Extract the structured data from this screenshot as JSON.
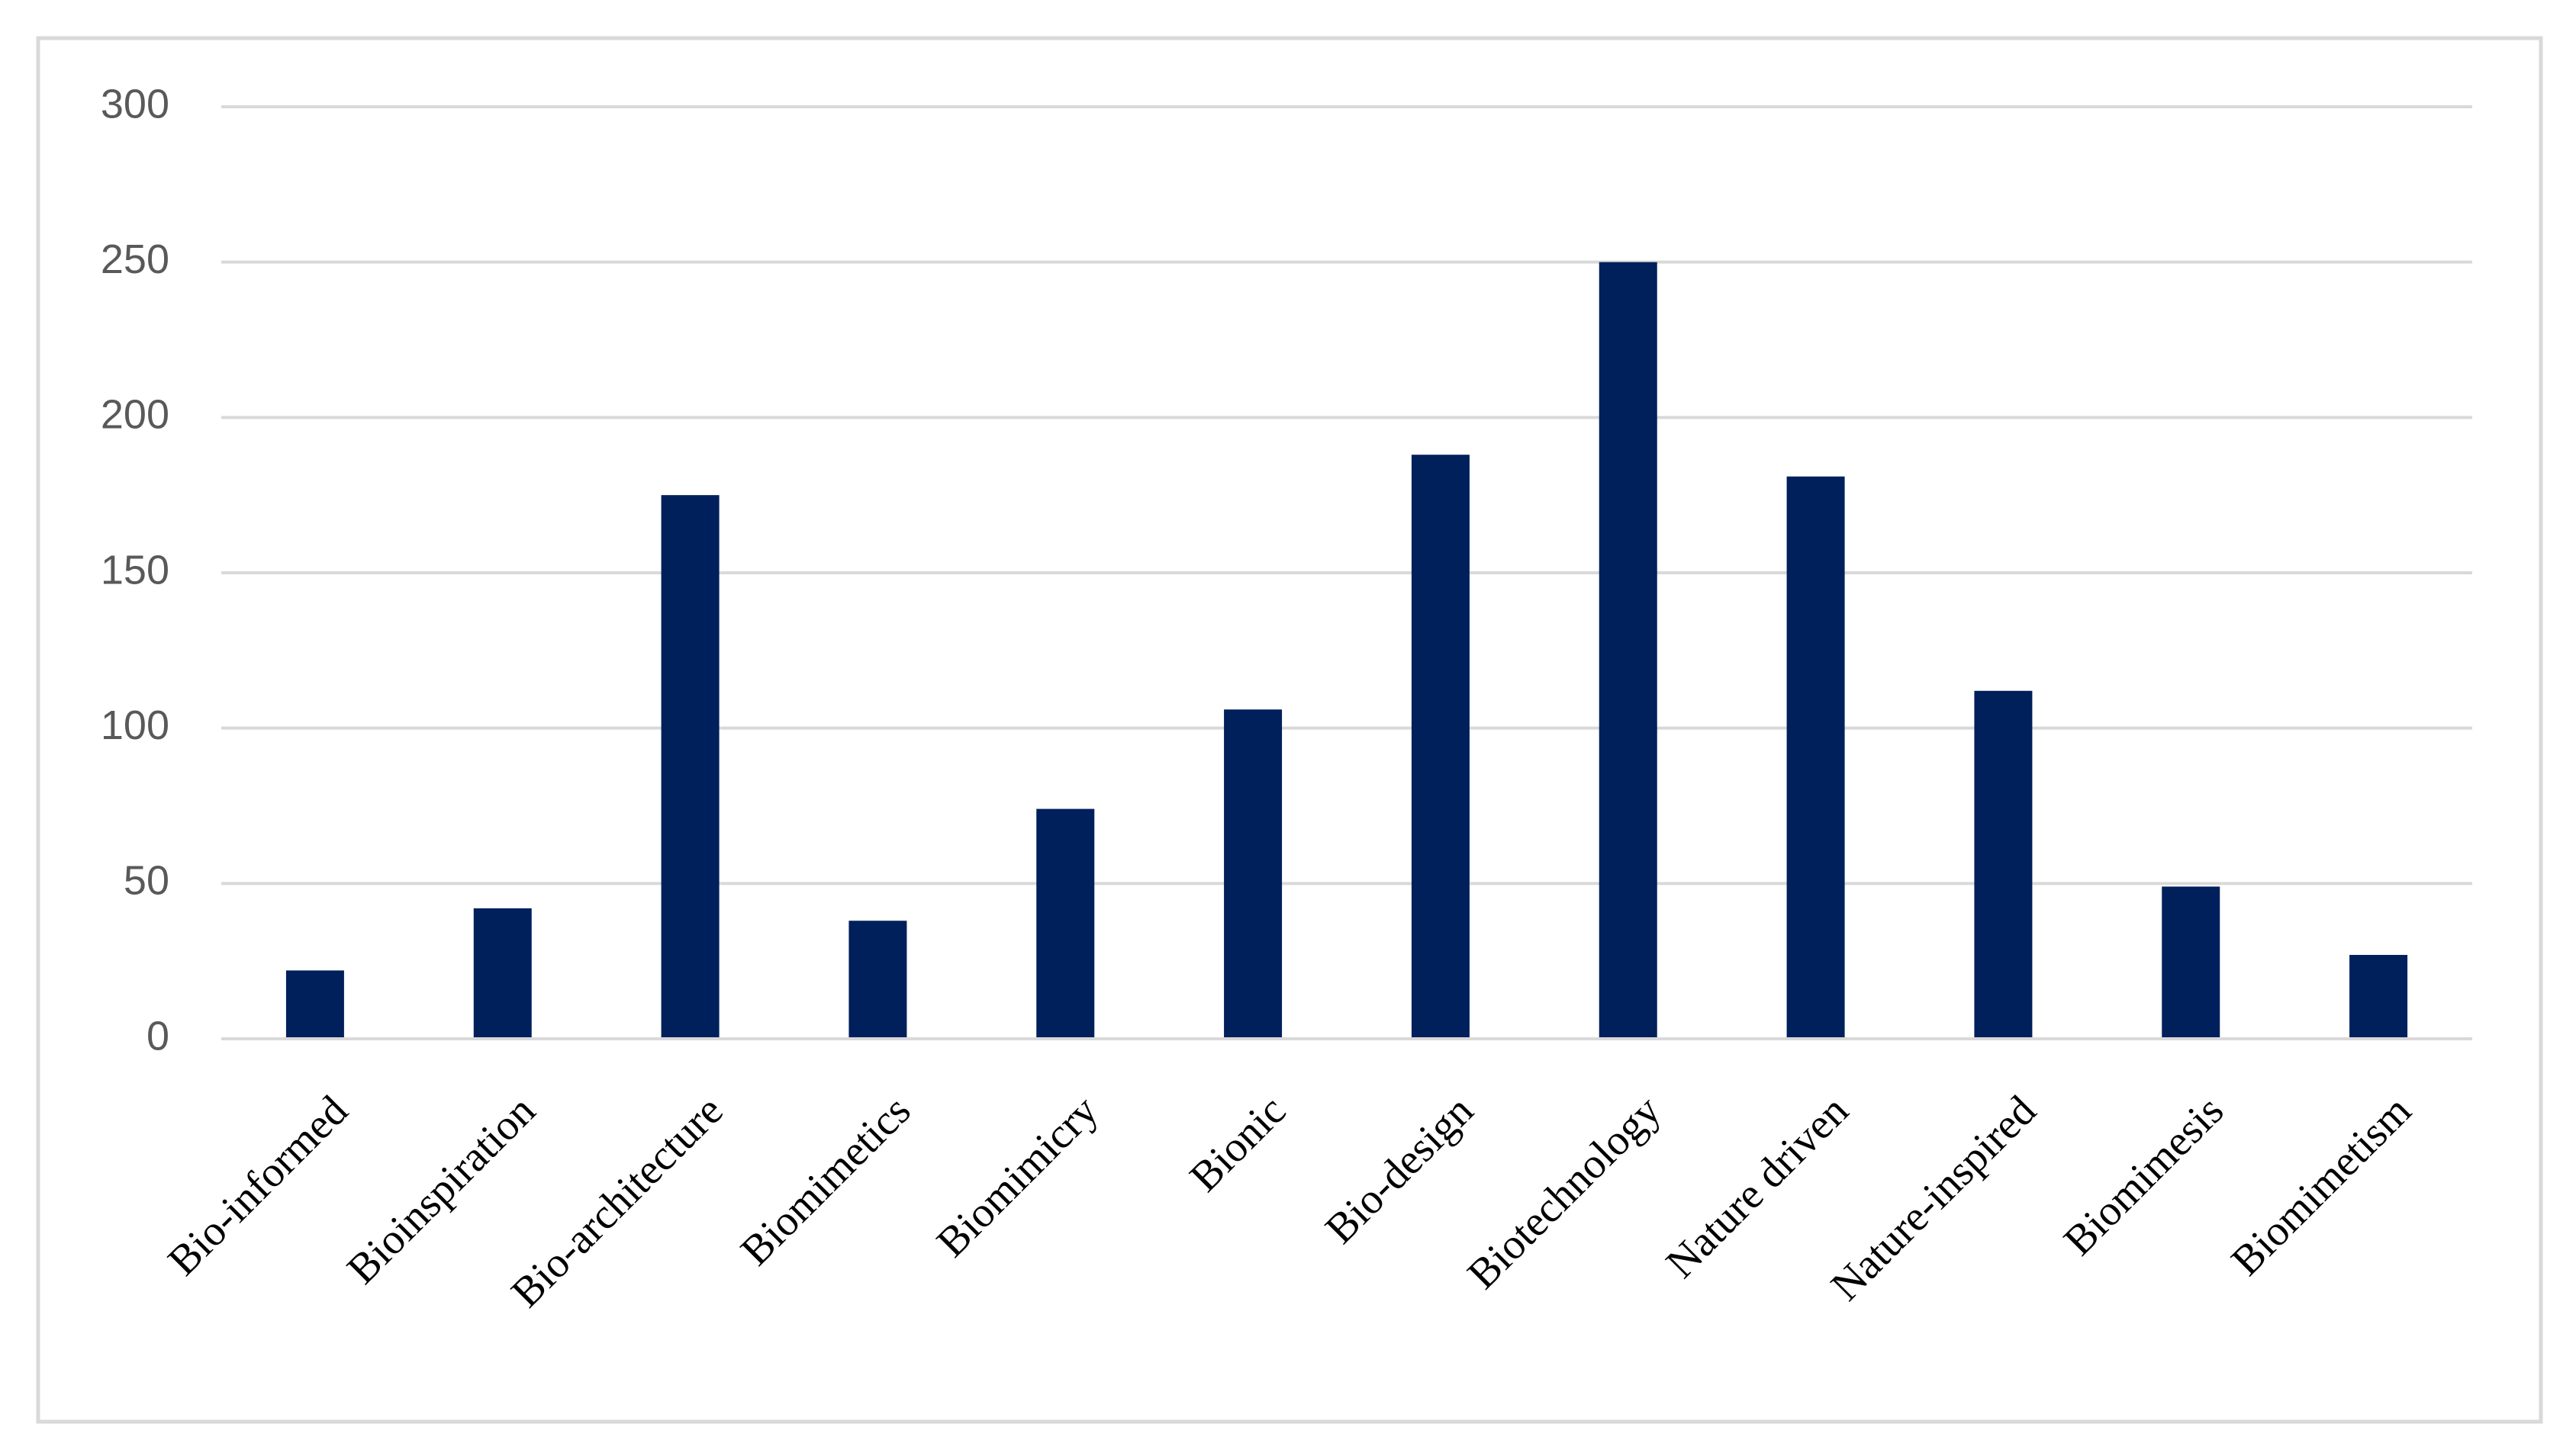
{
  "chart_data": {
    "type": "bar",
    "title": "",
    "xlabel": "",
    "ylabel": "",
    "categories": [
      "Bio-informed",
      "Bioinspiration",
      "Bio-architecture",
      "Biomimetics",
      "Biomimicry",
      "Bionic",
      "Bio-design",
      "Biotechnology",
      "Nature driven",
      "Nature-inspired",
      "Biomimesis",
      "Biomimetism"
    ],
    "values": [
      22,
      42,
      175,
      38,
      74,
      106,
      188,
      250,
      181,
      112,
      49,
      27
    ],
    "ylim": [
      0,
      300
    ],
    "yticks": [
      0,
      50,
      100,
      150,
      200,
      250,
      300
    ],
    "grid": true,
    "legend": "none",
    "colors": {
      "bar": "#00205B",
      "grid": "#D9D9D9",
      "frame": "#D9D9D9",
      "ytick_text": "#595959",
      "xtick_text": "#000000"
    }
  }
}
